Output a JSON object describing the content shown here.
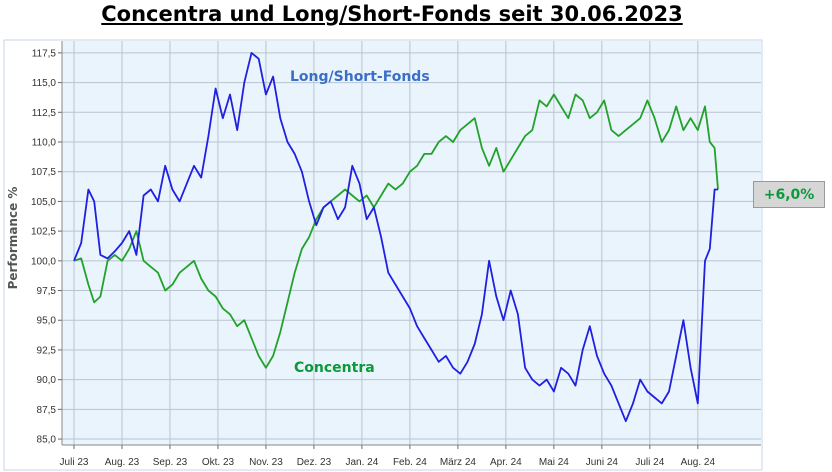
{
  "chart_data": {
    "type": "line",
    "title": "Concentra und Long/Short-Fonds seit 30.06.2023",
    "ylabel": "Performance %",
    "ylim": [
      84.5,
      118.5
    ],
    "yticks": [
      "85,0",
      "87,5",
      "90,0",
      "92,5",
      "95,0",
      "97,5",
      "100,0",
      "102,5",
      "105,0",
      "107,5",
      "110,0",
      "112,5",
      "115,0",
      "117,5"
    ],
    "xlim": [
      0,
      14.15
    ],
    "xticks": [
      "Juli 23",
      "Aug. 23",
      "Sep. 23",
      "Okt. 23",
      "Nov. 23",
      "Dez. 23",
      "Jan. 24",
      "Feb. 24",
      "März 24",
      "Apr. 24",
      "Mai 24",
      "Juni 24",
      "Juli 24",
      "Aug. 24"
    ],
    "grid": true,
    "series": [
      {
        "name": "Long/Short-Fonds",
        "color": "#2020e0",
        "label_color": "#3a6fc8",
        "x": [
          0,
          0.15,
          0.3,
          0.42,
          0.55,
          0.7,
          0.85,
          1.0,
          1.15,
          1.3,
          1.45,
          1.6,
          1.75,
          1.9,
          2.05,
          2.2,
          2.35,
          2.5,
          2.65,
          2.8,
          2.95,
          3.1,
          3.25,
          3.4,
          3.55,
          3.7,
          3.85,
          4.0,
          4.15,
          4.3,
          4.45,
          4.6,
          4.75,
          4.9,
          5.05,
          5.2,
          5.35,
          5.5,
          5.65,
          5.8,
          5.95,
          6.1,
          6.25,
          6.4,
          6.55,
          6.7,
          6.85,
          7.0,
          7.15,
          7.3,
          7.45,
          7.6,
          7.75,
          7.9,
          8.05,
          8.2,
          8.35,
          8.5,
          8.65,
          8.8,
          8.95,
          9.1,
          9.25,
          9.4,
          9.55,
          9.7,
          9.85,
          10.0,
          10.15,
          10.3,
          10.45,
          10.6,
          10.75,
          10.9,
          11.05,
          11.2,
          11.35,
          11.5,
          11.65,
          11.8,
          11.95,
          12.1,
          12.25,
          12.4,
          12.55,
          12.7,
          12.85,
          13.0,
          13.15,
          13.25,
          13.35,
          13.42
        ],
        "y": [
          100.0,
          101.5,
          106.0,
          105.0,
          100.5,
          100.2,
          100.8,
          101.5,
          102.5,
          100.5,
          105.5,
          106.0,
          105.0,
          108.0,
          106.0,
          105.0,
          106.5,
          108.0,
          107.0,
          110.5,
          114.5,
          112.0,
          114.0,
          111.0,
          115.0,
          117.5,
          117.0,
          114.0,
          115.5,
          112.0,
          110.0,
          109.0,
          107.5,
          105.0,
          103.0,
          104.5,
          105.0,
          103.5,
          104.5,
          108.0,
          106.5,
          103.5,
          104.5,
          102.0,
          99.0,
          98.0,
          97.0,
          96.0,
          94.5,
          93.5,
          92.5,
          91.5,
          92.0,
          91.0,
          90.5,
          91.5,
          93.0,
          95.5,
          100.0,
          97.0,
          95.0,
          97.5,
          95.5,
          91.0,
          90.0,
          89.5,
          90.0,
          89.0,
          91.0,
          90.5,
          89.5,
          92.5,
          94.5,
          92.0,
          90.5,
          89.5,
          88.0,
          86.5,
          88.0,
          90.0,
          89.0,
          88.5,
          88.0,
          89.0,
          92.0,
          95.0,
          91.0,
          88.0,
          100.0,
          101.0,
          106.0,
          106.0
        ]
      },
      {
        "name": "Concentra",
        "color": "#22a22a",
        "label_color": "#0a9a3a",
        "x": [
          0,
          0.15,
          0.3,
          0.42,
          0.55,
          0.7,
          0.85,
          1.0,
          1.15,
          1.3,
          1.45,
          1.6,
          1.75,
          1.9,
          2.05,
          2.2,
          2.35,
          2.5,
          2.65,
          2.8,
          2.95,
          3.1,
          3.25,
          3.4,
          3.55,
          3.7,
          3.85,
          4.0,
          4.15,
          4.3,
          4.45,
          4.6,
          4.75,
          4.9,
          5.05,
          5.2,
          5.35,
          5.5,
          5.65,
          5.8,
          5.95,
          6.1,
          6.25,
          6.4,
          6.55,
          6.7,
          6.85,
          7.0,
          7.15,
          7.3,
          7.45,
          7.6,
          7.75,
          7.9,
          8.05,
          8.2,
          8.35,
          8.5,
          8.65,
          8.8,
          8.95,
          9.1,
          9.25,
          9.4,
          9.55,
          9.7,
          9.85,
          10.0,
          10.15,
          10.3,
          10.45,
          10.6,
          10.75,
          10.9,
          11.05,
          11.2,
          11.35,
          11.5,
          11.65,
          11.8,
          11.95,
          12.1,
          12.25,
          12.4,
          12.55,
          12.7,
          12.85,
          13.0,
          13.15,
          13.25,
          13.35,
          13.42
        ],
        "y": [
          100.0,
          100.2,
          98.0,
          96.5,
          97.0,
          100.0,
          100.5,
          100.0,
          101.0,
          102.5,
          100.0,
          99.5,
          99.0,
          97.5,
          98.0,
          99.0,
          99.5,
          100.0,
          98.5,
          97.5,
          97.0,
          96.0,
          95.5,
          94.5,
          95.0,
          93.5,
          92.0,
          91.0,
          92.0,
          94.0,
          96.5,
          99.0,
          101.0,
          102.0,
          103.5,
          104.5,
          105.0,
          105.5,
          106.0,
          105.5,
          105.0,
          105.5,
          104.5,
          105.5,
          106.5,
          106.0,
          106.5,
          107.5,
          108.0,
          109.0,
          109.0,
          110.0,
          110.5,
          110.0,
          111.0,
          111.5,
          112.0,
          109.5,
          108.0,
          109.5,
          107.5,
          108.5,
          109.5,
          110.5,
          111.0,
          113.5,
          113.0,
          114.0,
          113.0,
          112.0,
          114.0,
          113.5,
          112.0,
          112.5,
          113.5,
          111.0,
          110.5,
          111.0,
          111.5,
          112.0,
          113.5,
          112.0,
          110.0,
          111.0,
          113.0,
          111.0,
          112.0,
          111.0,
          113.0,
          110.0,
          109.5,
          106.0
        ]
      }
    ],
    "annotations": [
      "Long/Short-Fonds",
      "Concentra"
    ],
    "badge": "+6,0%"
  }
}
